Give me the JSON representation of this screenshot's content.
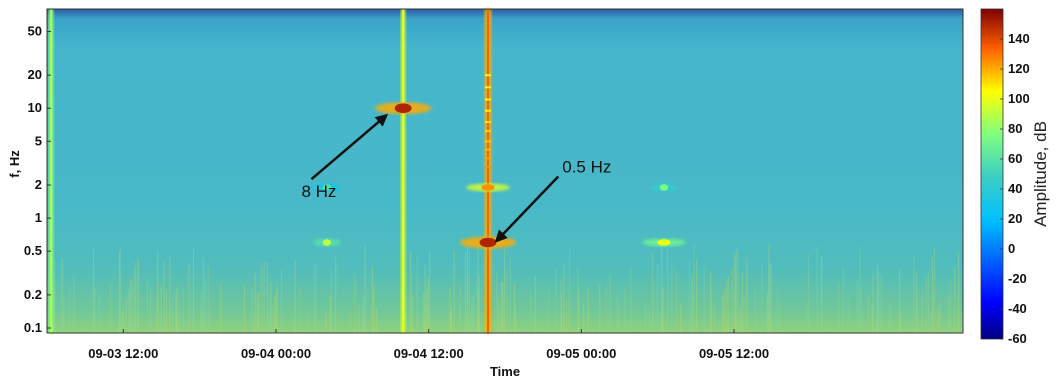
{
  "chart_data": {
    "type": "heatmap",
    "title": "",
    "xlabel": "Time",
    "ylabel": "f, Hz",
    "y_scale": "log",
    "ylim": [
      0.09,
      80
    ],
    "y_ticks": [
      {
        "value": 0.1,
        "label": "0.1"
      },
      {
        "value": 0.2,
        "label": "0.2"
      },
      {
        "value": 0.5,
        "label": "0.5"
      },
      {
        "value": 1,
        "label": "1"
      },
      {
        "value": 2,
        "label": "2"
      },
      {
        "value": 5,
        "label": "5"
      },
      {
        "value": 10,
        "label": "10"
      },
      {
        "value": 20,
        "label": "20"
      },
      {
        "value": 50,
        "label": "50"
      }
    ],
    "xlim": [
      "2012-09-03 06:00",
      "2012-09-06 06:00"
    ],
    "x_ticks": [
      {
        "value": "2012-09-03 12:00",
        "label": "09-03 12:00"
      },
      {
        "value": "2012-09-04 00:00",
        "label": "09-04 00:00"
      },
      {
        "value": "2012-09-04 12:00",
        "label": "09-04 12:00"
      },
      {
        "value": "2012-09-05 00:00",
        "label": "09-05 00:00"
      },
      {
        "value": "2012-09-05 12:00",
        "label": "09-05 12:00"
      }
    ],
    "colorbar": {
      "label": "Amplitude, dB",
      "range": [
        -60,
        160
      ],
      "ticks": [
        -60,
        -40,
        -20,
        0,
        20,
        40,
        60,
        80,
        100,
        120,
        140
      ],
      "colormap": "jet"
    },
    "background_level_db": 30,
    "features": [
      {
        "type": "band",
        "time": "2012-09-03 06:20",
        "level_db": 75
      },
      {
        "type": "band",
        "time": "2012-09-04 10:00",
        "level_db": 90
      },
      {
        "type": "band",
        "time": "2012-09-04 16:40",
        "level_db": 120
      },
      {
        "type": "spot",
        "time": "2012-09-04 10:00",
        "freq": 10,
        "level_db": 150
      },
      {
        "type": "spot",
        "time": "2012-09-04 16:40",
        "freq": 0.6,
        "level_db": 150
      },
      {
        "type": "spot",
        "time": "2012-09-04 16:40",
        "freq": 1.9,
        "level_db": 125
      },
      {
        "type": "spot",
        "time": "2012-09-04 04:00",
        "freq": 0.6,
        "level_db": 90
      },
      {
        "type": "spot",
        "time": "2012-09-04 04:00",
        "freq": 1.9,
        "level_db": 60
      },
      {
        "type": "spot",
        "time": "2012-09-05 06:30",
        "freq": 0.6,
        "level_db": 100
      },
      {
        "type": "spot",
        "time": "2012-09-05 06:30",
        "freq": 1.9,
        "level_db": 75
      }
    ],
    "annotations": [
      {
        "text": "8 Hz",
        "text_time": "2012-09-04 02:00",
        "text_freq": 1.55,
        "arrow_to_time": "2012-09-04 08:40",
        "arrow_to_freq": 8.6
      },
      {
        "text": "0.5 Hz",
        "text_time": "2012-09-04 22:30",
        "text_freq": 2.6,
        "arrow_to_time": "2012-09-04 17:20",
        "arrow_to_freq": 0.62
      }
    ]
  }
}
